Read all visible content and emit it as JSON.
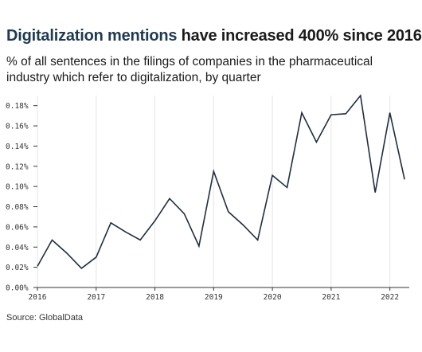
{
  "header": {
    "title_highlight": "Digitalization mentions",
    "title_rest": " have increased 400% since 2016",
    "subtitle": "% of all sentences in the filings of companies in the pharmaceutical industry which refer to digitalization, by quarter"
  },
  "footer": {
    "source": "Source: GlobalData"
  },
  "colors": {
    "line": "#1e2f3f",
    "grid": "#e6e6e6",
    "axis": "#333333",
    "title_highlight": "#1e3a52"
  },
  "chart_data": {
    "type": "line",
    "title": "Digitalization mentions have increased 400% since 2016",
    "xlabel": "",
    "ylabel": "",
    "x": [
      2016.0,
      2016.25,
      2016.5,
      2016.75,
      2017.0,
      2017.25,
      2017.5,
      2017.75,
      2018.0,
      2018.25,
      2018.5,
      2018.75,
      2019.0,
      2019.25,
      2019.5,
      2019.75,
      2020.0,
      2020.25,
      2020.5,
      2020.75,
      2021.0,
      2021.25,
      2021.5,
      2021.75,
      2022.0,
      2022.25
    ],
    "series": [
      {
        "values": [
          0.021,
          0.047,
          0.034,
          0.019,
          0.03,
          0.064,
          0.055,
          0.047,
          0.066,
          0.088,
          0.073,
          0.041,
          0.115,
          0.075,
          0.062,
          0.047,
          0.111,
          0.099,
          0.173,
          0.144,
          0.171,
          0.172,
          0.19,
          0.094,
          0.173,
          0.107
        ]
      }
    ],
    "xlim": [
      2016.0,
      2022.33
    ],
    "ylim": [
      0,
      0.19
    ],
    "x_ticks": [
      2016,
      2017,
      2018,
      2019,
      2020,
      2021,
      2022
    ],
    "x_tick_labels": [
      "2016",
      "2017",
      "2018",
      "2019",
      "2020",
      "2021",
      "2022"
    ],
    "y_ticks": [
      0,
      0.02,
      0.04,
      0.06,
      0.08,
      0.1,
      0.12,
      0.14,
      0.16,
      0.18
    ],
    "y_tick_labels": [
      "0.00%",
      "0.02%",
      "0.04%",
      "0.06%",
      "0.08%",
      "0.10%",
      "0.12%",
      "0.14%",
      "0.16%",
      "0.18%"
    ],
    "grid": "vertical",
    "legend": "none"
  }
}
